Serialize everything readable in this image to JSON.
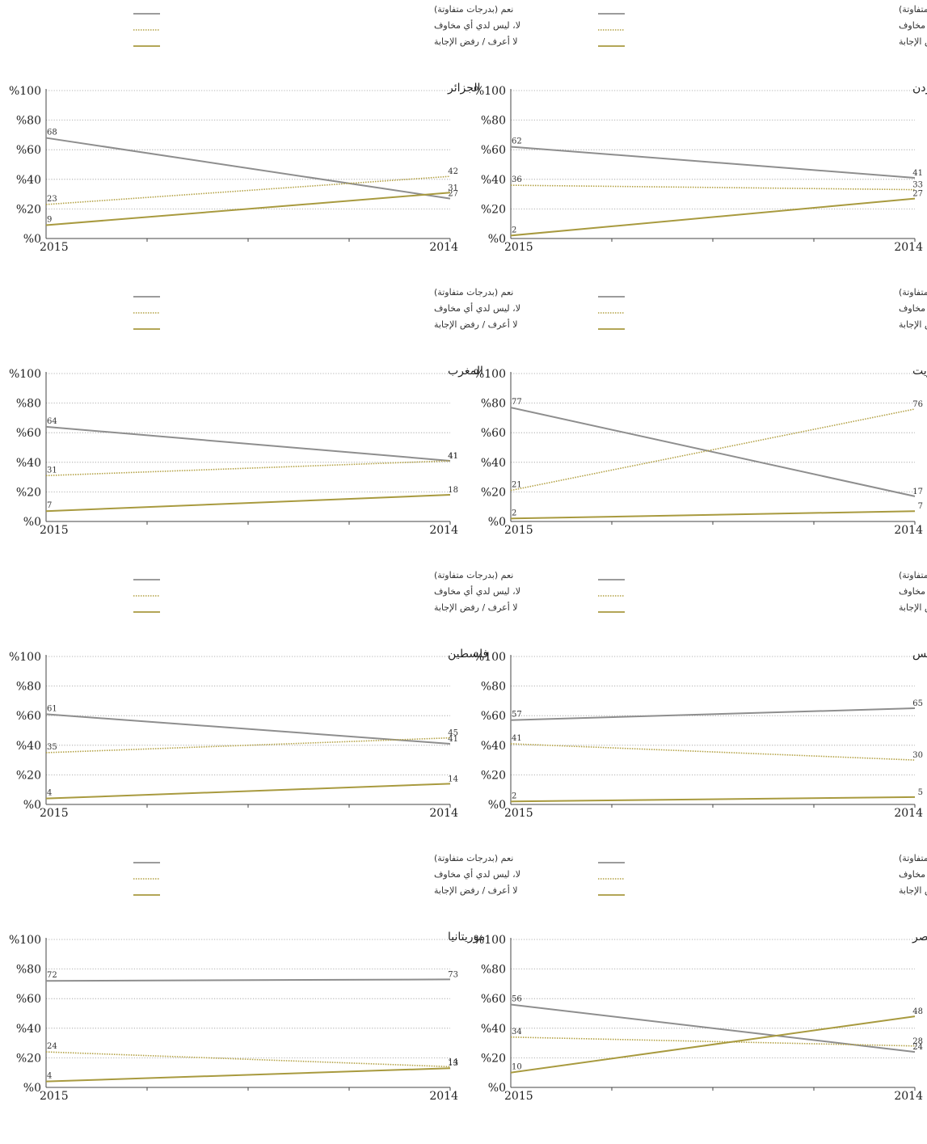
{
  "colors": {
    "yes": "#8e8e8e",
    "no": "#b3a144",
    "dk": "#a89a3f",
    "grid": "#9a9a9a"
  },
  "legend_labels": [
    "نعم (بدرجات متفاوتة)",
    "لا، ليس لدي أي مخاوف",
    "لا أعرف /  رفض الإجابة"
  ],
  "chart_data": [
    {
      "type": "line",
      "title": "الأردن",
      "x": [
        "2015",
        "2014"
      ],
      "ylim": [
        0,
        100
      ],
      "yticks": [
        "%0",
        "%20",
        "%40",
        "%60",
        "%80",
        "%100"
      ],
      "series": [
        {
          "name": "نعم (بدرجات متفاوتة)",
          "values": [
            62,
            41
          ]
        },
        {
          "name": "لا، ليس لدي أي مخاوف",
          "values": [
            36,
            33
          ]
        },
        {
          "name": "لا أعرف /  رفض الإجابة",
          "values": [
            2,
            27
          ]
        }
      ]
    },
    {
      "type": "line",
      "title": "الجزائر",
      "x": [
        "2015",
        "2014"
      ],
      "ylim": [
        0,
        100
      ],
      "yticks": [
        "%0",
        "%20",
        "%40",
        "%60",
        "%80",
        "%100"
      ],
      "series": [
        {
          "name": "نعم (بدرجات متفاوتة)",
          "values": [
            68,
            27
          ]
        },
        {
          "name": "لا، ليس لدي أي مخاوف",
          "values": [
            23,
            42
          ]
        },
        {
          "name": "لا أعرف /  رفض الإجابة",
          "values": [
            9,
            31
          ]
        }
      ]
    },
    {
      "type": "line",
      "title": "الكويت",
      "x": [
        "2015",
        "2014"
      ],
      "ylim": [
        0,
        100
      ],
      "yticks": [
        "%0",
        "%20",
        "%40",
        "%60",
        "%80",
        "%100"
      ],
      "series": [
        {
          "name": "نعم (بدرجات متفاوتة)",
          "values": [
            77,
            17
          ]
        },
        {
          "name": "لا، ليس لدي أي مخاوف",
          "values": [
            21,
            76
          ]
        },
        {
          "name": "لا أعرف /  رفض الإجابة",
          "values": [
            2,
            7
          ]
        }
      ]
    },
    {
      "type": "line",
      "title": "المغرب",
      "x": [
        "2015",
        "2014"
      ],
      "ylim": [
        0,
        100
      ],
      "yticks": [
        "%0",
        "%20",
        "%40",
        "%60",
        "%80",
        "%100"
      ],
      "series": [
        {
          "name": "نعم (بدرجات متفاوتة)",
          "values": [
            64,
            41
          ]
        },
        {
          "name": "لا، ليس لدي أي مخاوف",
          "values": [
            31,
            41
          ]
        },
        {
          "name": "لا أعرف /  رفض الإجابة",
          "values": [
            7,
            18
          ]
        }
      ]
    },
    {
      "type": "line",
      "title": "تونس",
      "x": [
        "2015",
        "2014"
      ],
      "ylim": [
        0,
        100
      ],
      "yticks": [
        "%0",
        "%20",
        "%40",
        "%60",
        "%80",
        "%100"
      ],
      "series": [
        {
          "name": "نعم (بدرجات متفاوتة)",
          "values": [
            57,
            65
          ]
        },
        {
          "name": "لا، ليس لدي أي مخاوف",
          "values": [
            41,
            30
          ]
        },
        {
          "name": "لا أعرف /  رفض الإجابة",
          "values": [
            2,
            5
          ]
        }
      ]
    },
    {
      "type": "line",
      "title": "فلسطين",
      "x": [
        "2015",
        "2014"
      ],
      "ylim": [
        0,
        100
      ],
      "yticks": [
        "%0",
        "%20",
        "%40",
        "%60",
        "%80",
        "%100"
      ],
      "series": [
        {
          "name": "نعم (بدرجات متفاوتة)",
          "values": [
            61,
            41
          ]
        },
        {
          "name": "لا، ليس لدي أي مخاوف",
          "values": [
            35,
            45
          ]
        },
        {
          "name": "لا أعرف /  رفض الإجابة",
          "values": [
            4,
            14
          ]
        }
      ]
    },
    {
      "type": "line",
      "title": "مصر",
      "x": [
        "2015",
        "2014"
      ],
      "ylim": [
        0,
        100
      ],
      "yticks": [
        "%0",
        "%20",
        "%40",
        "%60",
        "%80",
        "%100"
      ],
      "series": [
        {
          "name": "نعم (بدرجات متفاوتة)",
          "values": [
            56,
            24
          ]
        },
        {
          "name": "لا، ليس لدي أي مخاوف",
          "values": [
            34,
            28
          ]
        },
        {
          "name": "لا أعرف /  رفض الإجابة",
          "values": [
            10,
            48
          ]
        }
      ]
    },
    {
      "type": "line",
      "title": "موريتانيا",
      "x": [
        "2015",
        "2014"
      ],
      "ylim": [
        0,
        100
      ],
      "yticks": [
        "%0",
        "%20",
        "%40",
        "%60",
        "%80",
        "%100"
      ],
      "series": [
        {
          "name": "نعم (بدرجات متفاوتة)",
          "values": [
            72,
            73
          ]
        },
        {
          "name": "لا، ليس لدي أي مخاوف",
          "values": [
            24,
            14
          ]
        },
        {
          "name": "لا أعرف /  رفض الإجابة",
          "values": [
            4,
            13
          ]
        }
      ]
    }
  ]
}
